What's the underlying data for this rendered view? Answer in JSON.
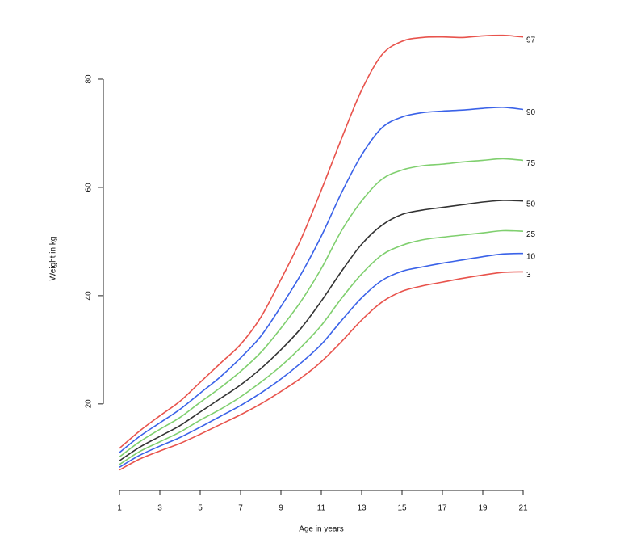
{
  "chart_data": {
    "type": "line",
    "xlabel": "Age in years",
    "ylabel": "Weight in kg",
    "x": [
      1,
      2,
      3,
      4,
      5,
      6,
      7,
      8,
      9,
      10,
      11,
      12,
      13,
      14,
      15,
      16,
      17,
      18,
      19,
      20,
      21
    ],
    "series": [
      {
        "name": "97",
        "color": "#e8534c",
        "values": [
          11.8,
          15,
          17.8,
          20.5,
          24,
          27.5,
          31,
          36,
          43,
          50.5,
          59.5,
          69,
          78,
          84.5,
          87,
          87.7,
          87.8,
          87.7,
          88,
          88.1,
          87.8
        ]
      },
      {
        "name": "90",
        "color": "#3a62e8",
        "values": [
          11,
          14,
          16.5,
          19,
          22,
          25,
          28.5,
          32.5,
          38,
          44,
          51,
          59,
          66,
          71,
          73,
          73.8,
          74.1,
          74.3,
          74.6,
          74.8,
          74.4
        ]
      },
      {
        "name": "75",
        "color": "#7fcf6e",
        "values": [
          10.2,
          13,
          15.3,
          17.5,
          20.3,
          23,
          26,
          29.5,
          34,
          39,
          45,
          52,
          57.5,
          61.5,
          63.2,
          64,
          64.3,
          64.7,
          65,
          65.3,
          65
        ]
      },
      {
        "name": "50",
        "color": "#333333",
        "values": [
          9.5,
          12,
          14,
          16,
          18.5,
          21,
          23.5,
          26.5,
          30,
          34,
          39,
          44.5,
          49.5,
          53,
          55,
          55.8,
          56.3,
          56.8,
          57.3,
          57.6,
          57.5
        ]
      },
      {
        "name": "25",
        "color": "#7fcf6e",
        "values": [
          8.8,
          11.2,
          13,
          14.8,
          17,
          19,
          21.3,
          24,
          27,
          30.5,
          34.5,
          39.5,
          44,
          47.5,
          49.3,
          50.3,
          50.8,
          51.2,
          51.6,
          52,
          51.9
        ]
      },
      {
        "name": "10",
        "color": "#3a62e8",
        "values": [
          8.3,
          10.5,
          12.2,
          13.8,
          15.7,
          17.7,
          19.7,
          22,
          24.6,
          27.6,
          31,
          35.4,
          39.6,
          42.8,
          44.5,
          45.3,
          46,
          46.6,
          47.2,
          47.7,
          47.8
        ]
      },
      {
        "name": "3",
        "color": "#e8534c",
        "values": [
          7.8,
          9.8,
          11.3,
          12.7,
          14.4,
          16.2,
          18,
          20,
          22.3,
          24.8,
          27.8,
          31.5,
          35.5,
          38.8,
          40.8,
          41.8,
          42.5,
          43.2,
          43.8,
          44.3,
          44.4
        ]
      }
    ],
    "xlim": [
      1,
      21
    ],
    "xticks": [
      1,
      3,
      5,
      7,
      9,
      11,
      13,
      15,
      17,
      19,
      21
    ],
    "ylim": [
      4,
      90
    ],
    "yticks": [
      20,
      40,
      60,
      80
    ]
  }
}
